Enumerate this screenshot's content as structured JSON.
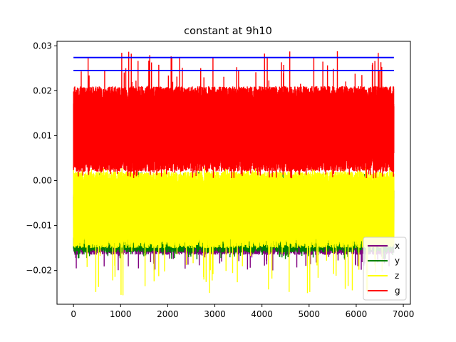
{
  "chart_data": {
    "type": "line",
    "title": "constant at 9h10",
    "xlabel": "",
    "ylabel": "",
    "xlim": [
      -350,
      7150
    ],
    "ylim": [
      -0.0275,
      0.031
    ],
    "x_ticks": [
      0,
      1000,
      2000,
      3000,
      4000,
      5000,
      6000,
      7000
    ],
    "x_tick_labels": [
      "0",
      "1000",
      "2000",
      "3000",
      "4000",
      "5000",
      "6000",
      "7000"
    ],
    "y_ticks": [
      -0.02,
      -0.01,
      0.0,
      0.01,
      0.02,
      0.03
    ],
    "y_tick_labels": [
      "−0.02",
      "−0.01",
      "0.00",
      "0.01",
      "0.02",
      "0.03"
    ],
    "n_samples": 6800,
    "grid": false,
    "legend_position": "lower-right",
    "series": [
      {
        "name": "x",
        "color": "#800080",
        "typical_range": [
          -0.0165,
          -0.002
        ],
        "extreme_min": -0.02,
        "extreme_max": 0.0
      },
      {
        "name": "y",
        "color": "#008000",
        "typical_range": [
          -0.016,
          -0.001
        ],
        "extreme_min": -0.0175,
        "extreme_max": 0.002
      },
      {
        "name": "z",
        "color": "#ffff00",
        "typical_range": [
          -0.015,
          0.002
        ],
        "extreme_min": -0.0255,
        "extreme_max": 0.003
      },
      {
        "name": "g",
        "color": "#ff0000",
        "typical_range": [
          0.002,
          0.021
        ],
        "extreme_min": 0.0005,
        "extreme_max": 0.0288
      }
    ],
    "reference_lines": [
      {
        "color": "#0000ff",
        "y": 0.0274,
        "x_range": [
          0,
          6800
        ]
      },
      {
        "color": "#0000ff",
        "y": 0.0245,
        "x_range": [
          0,
          6800
        ]
      }
    ]
  }
}
